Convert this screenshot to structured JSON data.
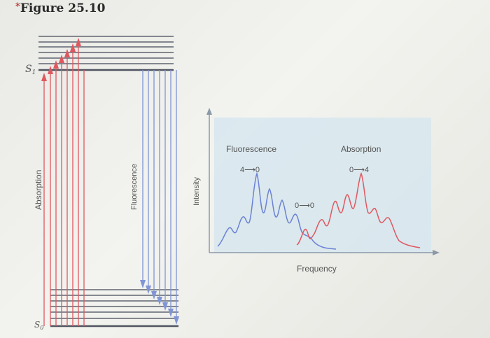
{
  "figure": {
    "title_mark": "*",
    "title": "Figure 25.10"
  },
  "energy_diagram": {
    "upper_state": "S",
    "upper_state_sub": "1",
    "lower_state": "S",
    "lower_state_sub": "0",
    "absorption_label": "Absorption",
    "fluorescence_label": "Fluorescence",
    "colors": {
      "absorption": "#e0575f",
      "fluorescence": "#7f95d6",
      "levels": "#5f6470"
    }
  },
  "spectrum": {
    "ylabel": "Intensity",
    "xlabel": "Frequency",
    "fluorescence_label": "Fluorescence",
    "fluorescence_transition": "4⟶0",
    "absorption_label": "Absorption",
    "absorption_transition": "0⟶4",
    "origin_transition": "0⟶0",
    "panel_color": "#d7e6ef",
    "colors": {
      "fluorescence": "#6b82d4",
      "absorption": "#e05760"
    }
  }
}
